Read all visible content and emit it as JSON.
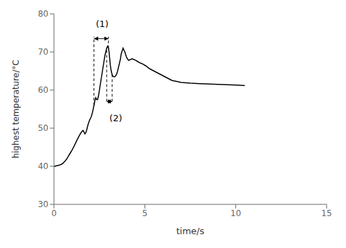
{
  "chart_data": {
    "type": "line",
    "xlabel": "time/s",
    "ylabel": "highest temperature/°C",
    "x": [
      0.0,
      0.05,
      0.1,
      0.2,
      0.3,
      0.4,
      0.5,
      0.6,
      0.7,
      0.8,
      0.9,
      1.0,
      1.1,
      1.2,
      1.3,
      1.4,
      1.5,
      1.6,
      1.65,
      1.7,
      1.75,
      1.8,
      1.85,
      1.9,
      1.95,
      2.0,
      2.05,
      2.1,
      2.15,
      2.2,
      2.25,
      2.3,
      2.35,
      2.4,
      2.45,
      2.5,
      2.55,
      2.6,
      2.65,
      2.7,
      2.75,
      2.8,
      2.85,
      2.9,
      2.93,
      2.95,
      2.97,
      3.0,
      3.03,
      3.06,
      3.1,
      3.15,
      3.2,
      3.25,
      3.3,
      3.35,
      3.4,
      3.45,
      3.5,
      3.55,
      3.6,
      3.65,
      3.7,
      3.8,
      3.9,
      4.0,
      4.1,
      4.2,
      4.3,
      4.4,
      4.5,
      4.6,
      4.7,
      4.8,
      4.9,
      5.0,
      5.1,
      5.2,
      5.3,
      5.5,
      5.7,
      5.9,
      6.1,
      6.3,
      6.5,
      6.7,
      7.0,
      7.5,
      8.0,
      8.5,
      9.0,
      9.5,
      10.0,
      10.5
    ],
    "values": [
      40.0,
      40.0,
      40.1,
      40.2,
      40.3,
      40.5,
      40.8,
      41.3,
      41.9,
      42.7,
      43.5,
      44.3,
      45.2,
      46.2,
      47.2,
      48.1,
      48.9,
      49.4,
      49.0,
      48.5,
      48.8,
      49.5,
      50.5,
      51.3,
      52.0,
      52.5,
      53.0,
      53.8,
      54.8,
      56.0,
      57.2,
      58.0,
      57.5,
      57.5,
      58.5,
      60.0,
      61.5,
      63.0,
      64.5,
      66.0,
      67.5,
      69.0,
      70.0,
      71.0,
      71.3,
      71.5,
      71.3,
      71.0,
      70.0,
      68.5,
      66.5,
      65.0,
      64.0,
      63.6,
      63.5,
      63.5,
      63.8,
      64.2,
      65.0,
      66.0,
      67.0,
      68.0,
      69.5,
      71.0,
      70.0,
      68.5,
      67.8,
      68.0,
      68.2,
      68.0,
      67.8,
      67.5,
      67.2,
      67.0,
      66.8,
      66.5,
      66.2,
      65.8,
      65.5,
      65.0,
      64.5,
      64.0,
      63.5,
      63.0,
      62.5,
      62.3,
      62.0,
      61.8,
      61.7,
      61.6,
      61.5,
      61.4,
      61.3,
      61.2
    ],
    "color": "#000000",
    "xlim": [
      0,
      15
    ],
    "ylim": [
      30,
      80
    ],
    "xticks": [
      0,
      5,
      10,
      15
    ],
    "yticks": [
      30,
      40,
      50,
      60,
      70,
      80
    ],
    "grid": false,
    "annotations": [
      {
        "text": "(1)",
        "x": 2.65,
        "y": 76.5,
        "arrow": {
          "x": [
            2.2,
            3.0
          ],
          "y": 73.5
        },
        "guides": [
          {
            "x": 2.2,
            "y": [
              56.0,
              74.0
            ]
          },
          {
            "x": 3.0,
            "y": [
              71.0,
              74.0
            ]
          }
        ]
      },
      {
        "text": "(2)",
        "x": 3.05,
        "y": 53.5,
        "arrow": {
          "x": [
            2.9,
            3.2
          ],
          "y": 57.0
        },
        "guides": [
          {
            "x": 2.9,
            "y": [
              57.0,
              71.0
            ]
          },
          {
            "x": 3.2,
            "y": [
              57.0,
              64.0
            ]
          }
        ]
      }
    ]
  }
}
